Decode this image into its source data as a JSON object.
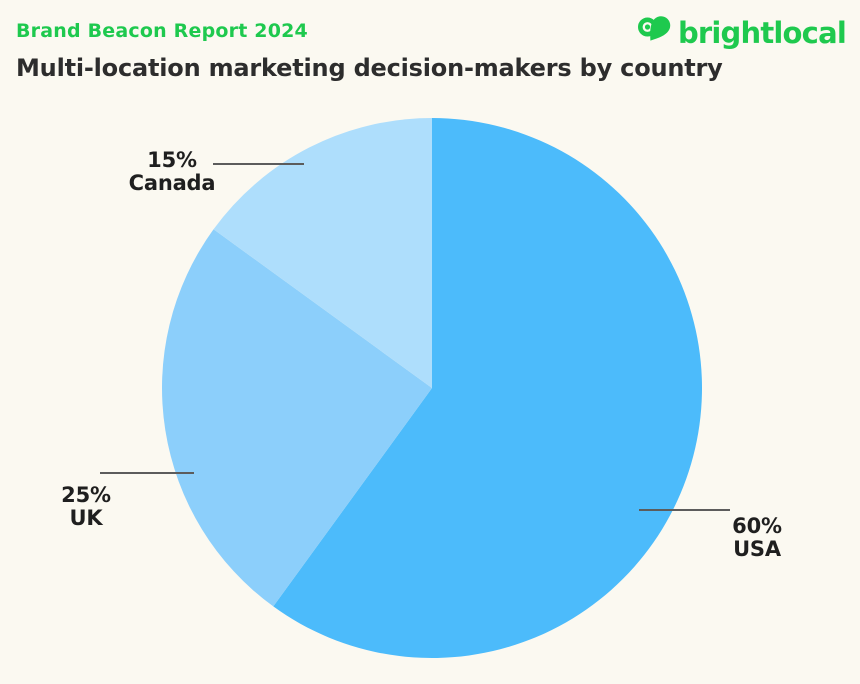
{
  "header": {
    "report_label": "Brand Beacon Report 2024",
    "title": "Multi-location marketing decision-makers by country"
  },
  "logo": {
    "text": "brightlocal",
    "icon": "map-pin-heart-icon"
  },
  "colors": {
    "brand_green": "#1EC94E",
    "background": "#FBF9F1",
    "title_text": "#2D2D2D",
    "leader_line": "#5C5C5C"
  },
  "chart_data": {
    "type": "pie",
    "title": "Multi-location marketing decision-makers by country",
    "categories": [
      "USA",
      "UK",
      "Canada"
    ],
    "values": [
      60,
      25,
      15
    ],
    "unit": "%",
    "colors": [
      "#4CBBFB",
      "#8CCFFB",
      "#AEDEFC"
    ],
    "start_angle_deg": 0,
    "direction": "clockwise",
    "legend": "none",
    "labels": "external-callouts-with-leader-lines",
    "slices": [
      {
        "label": "USA",
        "value": 60,
        "pct_label": "60%",
        "color": "#4CBBFB"
      },
      {
        "label": "UK",
        "value": 25,
        "pct_label": "25%",
        "color": "#8CCFFB"
      },
      {
        "label": "Canada",
        "value": 15,
        "pct_label": "15%",
        "color": "#AEDEFC"
      }
    ]
  }
}
